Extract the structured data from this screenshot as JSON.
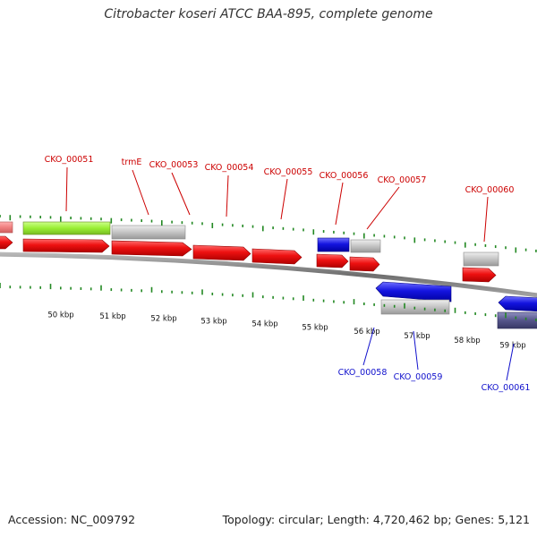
{
  "title": "Citrobacter koseri ATCC BAA-895, complete genome",
  "footer": {
    "accession": "Accession: NC_009792",
    "topology": "Topology: circular; Length: 4,720,462 bp; Genes: 5,121"
  },
  "colors": {
    "forward_cds": "#e01010",
    "reverse_cds": "#1414e0",
    "trna": "#99ee33",
    "gene": "#bbbbbb",
    "other": "#55558a",
    "tick": "#228822",
    "backbone": "#777777"
  },
  "scale": {
    "ticks_kbp": [
      "50 kbp",
      "51 kbp",
      "52 kbp",
      "53 kbp",
      "54 kbp",
      "55 kbp",
      "56 kbp",
      "57 kbp",
      "58 kbp",
      "59 kbp"
    ]
  },
  "labels": {
    "forward": [
      "CKO_00051",
      "trmE",
      "CKO_00053",
      "CKO_00054",
      "CKO_00055",
      "CKO_00056",
      "CKO_00057",
      "CKO_00060"
    ],
    "reverse": [
      "CKO_00058",
      "CKO_00059",
      "CKO_00061"
    ]
  }
}
